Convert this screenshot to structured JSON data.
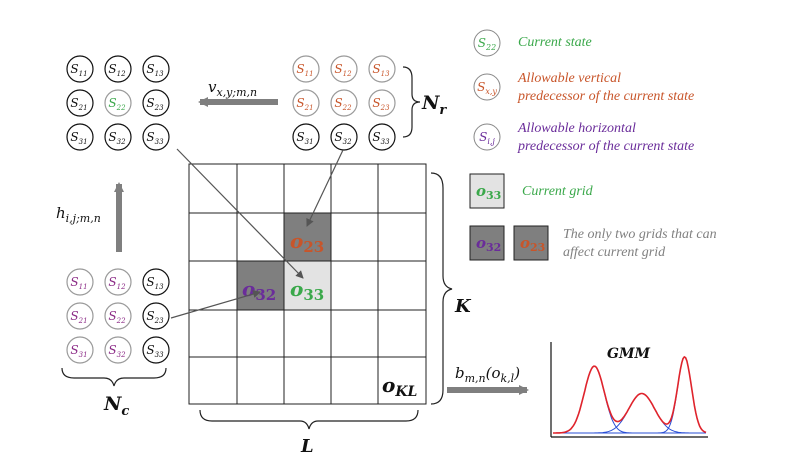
{
  "colors": {
    "green": "#3aa84a",
    "orange": "#c8552a",
    "purple": "#6a2c9a",
    "magenta": "#8b2a86",
    "dark_gray": "#7f7f7f",
    "light_gray": "#e3e3e3",
    "red_curve": "#e0242c",
    "blue_curve": "#2a4fd6"
  },
  "state_circles": {
    "top_left": [
      "S11",
      "S12",
      "S13",
      "S21",
      "S22",
      "S23",
      "S31",
      "S32",
      "S33"
    ],
    "top_right": [
      "S11",
      "S12",
      "S13",
      "S21",
      "S22",
      "S23",
      "S31",
      "S32",
      "S33"
    ],
    "bottom_left": [
      "S11",
      "S12",
      "S13",
      "S21",
      "S22",
      "S23",
      "S31",
      "S32",
      "S33"
    ]
  },
  "labels": {
    "v_arrow": "v",
    "v_arrow_sub": "x,y;m,n",
    "h_arrow": "h",
    "h_arrow_sub": "i,j;m,n",
    "Nr": "N",
    "Nr_sub": "r",
    "Nc": "N",
    "Nc_sub": "c",
    "K": "K",
    "L": "L",
    "o23": "o",
    "o23_sub": "23",
    "o32": "o",
    "o32_sub": "32",
    "o33": "o",
    "o33_sub": "33",
    "oKL": "o",
    "oKL_sub": "KL",
    "b_arrow": "b",
    "b_arrow_sub": "m,n",
    "b_arrow_arg": "(o",
    "b_arrow_arg_sub": "k,l",
    "b_arrow_close": ")",
    "gmm": "GMM"
  },
  "legend": {
    "current_state_symbol": "S",
    "current_state_sub": "22",
    "current_state": "Current state",
    "vertical_symbol": "S",
    "vertical_sub": "x,y",
    "vertical_line1": "Allowable vertical",
    "vertical_line2": "predecessor of the current state",
    "horizontal_symbol": "S",
    "horizontal_sub": "i,j",
    "horizontal_line1": "Allowable horizontal",
    "horizontal_line2": "predecessor of the current state",
    "grid_symbol": "o",
    "grid_sub": "33",
    "current_grid": "Current grid",
    "two_a_symbol": "o",
    "two_a_sub": "32",
    "two_b_symbol": "o",
    "two_b_sub": "23",
    "two_line1": "The only two grids that can",
    "two_line2": "affect current grid"
  }
}
